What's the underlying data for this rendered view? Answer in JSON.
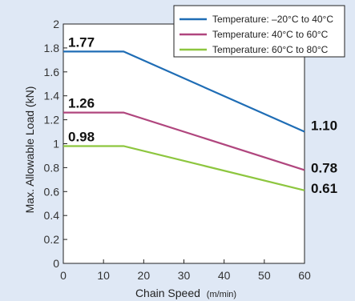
{
  "chart_data": {
    "type": "line",
    "xlabel": "Chain Speed",
    "xlabel_unit": "(m/min)",
    "ylabel": "Max. Allowable Load (kN)",
    "xlim": [
      0,
      60
    ],
    "ylim": [
      0,
      2
    ],
    "x_ticks": [
      "0",
      "10",
      "20",
      "30",
      "40",
      "50",
      "60"
    ],
    "y_ticks": [
      "0",
      "0.2",
      "0.4",
      "0.6",
      "0.8",
      "1",
      "1.2",
      "1.4",
      "1.6",
      "1.8",
      "2"
    ],
    "x_tick_values": [
      0,
      10,
      20,
      30,
      40,
      50,
      60
    ],
    "y_tick_values": [
      0,
      0.2,
      0.4,
      0.6,
      0.8,
      1,
      1.2,
      1.4,
      1.6,
      1.8,
      2
    ],
    "grid": false,
    "legend_position": "top-right",
    "series": [
      {
        "name": "Temperature: –20°C to 40°C",
        "color": "#1f6db5",
        "x": [
          0,
          15,
          60
        ],
        "y": [
          1.77,
          1.77,
          1.1
        ],
        "start_label": "1.77",
        "end_label": "1.10"
      },
      {
        "name": "Temperature: 40°C to 60°C",
        "color": "#b0467e",
        "x": [
          0,
          15,
          60
        ],
        "y": [
          1.26,
          1.26,
          0.78
        ],
        "start_label": "1.26",
        "end_label": "0.78"
      },
      {
        "name": "Temperature: 60°C to 80°C",
        "color": "#8dc63f",
        "x": [
          0,
          15,
          60
        ],
        "y": [
          0.98,
          0.98,
          0.61
        ],
        "start_label": "0.98",
        "end_label": "0.61"
      }
    ]
  }
}
